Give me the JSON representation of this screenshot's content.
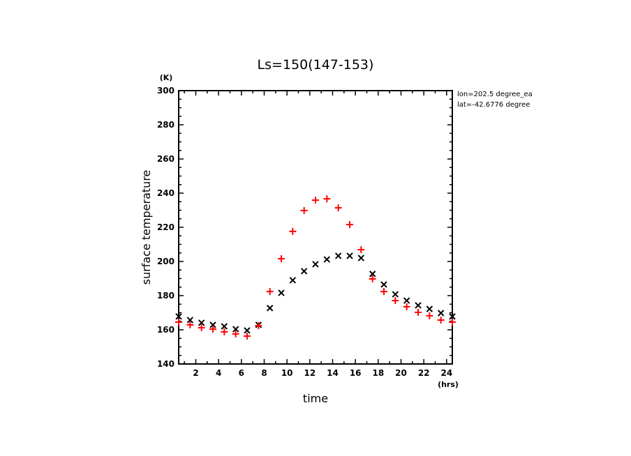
{
  "chart_data": {
    "type": "scatter",
    "title": "Ls=150(147-153)",
    "xlabel": "time",
    "ylabel": "surface temperature",
    "x_unit": "(hrs)",
    "y_unit": "(K)",
    "xlim": [
      0.5,
      24.5
    ],
    "ylim": [
      140,
      300
    ],
    "x_major_ticks": [
      2,
      4,
      6,
      8,
      10,
      12,
      14,
      16,
      18,
      20,
      22,
      24
    ],
    "x_minor_step": 1,
    "y_major_ticks": [
      140,
      160,
      180,
      200,
      220,
      240,
      260,
      280,
      300
    ],
    "y_minor_step": 5,
    "grid": false,
    "annotations": [
      "lon=202.5 degree_ea",
      "lat=-42.6776 degree"
    ],
    "x": [
      0.5,
      1.5,
      2.5,
      3.5,
      4.5,
      5.5,
      6.5,
      7.5,
      8.5,
      9.5,
      10.5,
      11.5,
      12.5,
      13.5,
      14.5,
      15.5,
      16.5,
      17.5,
      18.5,
      19.5,
      20.5,
      21.5,
      22.5,
      23.5,
      24.5
    ],
    "series": [
      {
        "name": "series-black-x",
        "marker": "x",
        "color": "#000000",
        "values": [
          167.8,
          165.7,
          164.1,
          162.9,
          162.0,
          160.4,
          159.6,
          162.9,
          172.7,
          181.6,
          189.0,
          194.3,
          198.4,
          201.2,
          203.3,
          203.3,
          202.0,
          192.7,
          186.5,
          180.8,
          177.1,
          174.3,
          172.2,
          169.8,
          167.8
        ]
      },
      {
        "name": "series-red-plus",
        "marker": "+",
        "color": "#ff0000",
        "values": [
          164.5,
          162.9,
          161.2,
          160.4,
          158.8,
          157.6,
          156.3,
          162.4,
          182.4,
          201.6,
          217.6,
          229.8,
          235.9,
          236.7,
          231.4,
          221.6,
          206.9,
          189.8,
          182.4,
          177.1,
          173.5,
          170.2,
          168.2,
          165.7,
          164.5
        ]
      }
    ]
  }
}
